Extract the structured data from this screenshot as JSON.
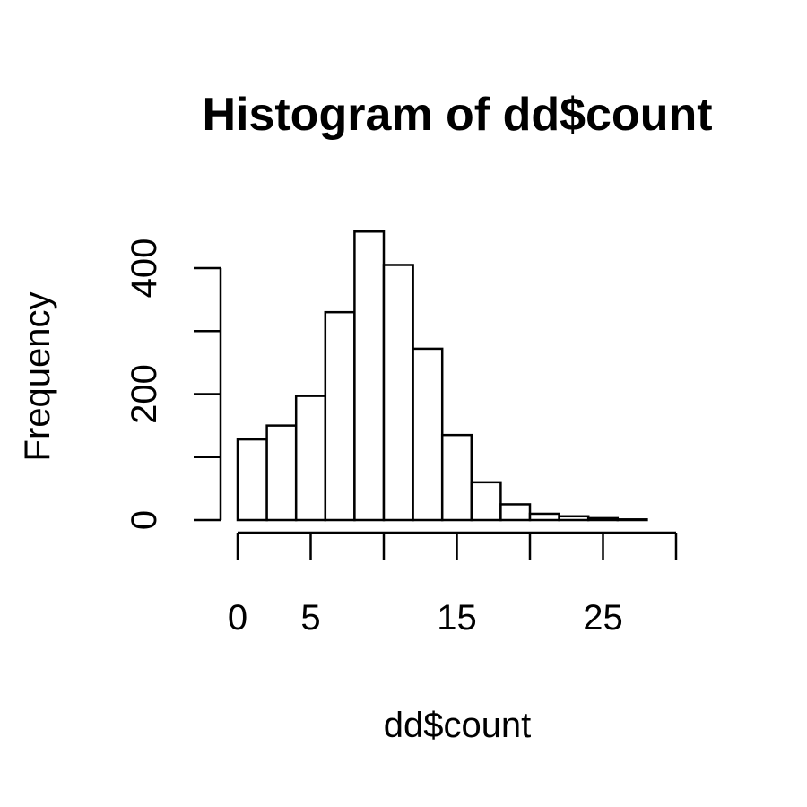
{
  "chart_data": {
    "type": "bar",
    "title": "Histogram of dd$count",
    "xlabel": "dd$count",
    "ylabel": "Frequency",
    "bin_edges": [
      0,
      2,
      4,
      6,
      8,
      10,
      12,
      14,
      16,
      18,
      20,
      22,
      24,
      26,
      28
    ],
    "values": [
      128,
      150,
      197,
      330,
      458,
      405,
      272,
      135,
      60,
      25,
      10,
      6,
      3,
      1
    ],
    "xlim": [
      0,
      30
    ],
    "ylim": [
      0,
      400
    ],
    "x_ticks": [
      0,
      5,
      10,
      15,
      20,
      25,
      30
    ],
    "x_tick_labels": [
      "0",
      "5",
      "",
      "15",
      "",
      "25",
      ""
    ],
    "y_ticks": [
      0,
      100,
      200,
      300,
      400
    ],
    "y_tick_labels": [
      "0",
      "",
      "200",
      "",
      "400"
    ],
    "grid": false,
    "legend": "none"
  }
}
